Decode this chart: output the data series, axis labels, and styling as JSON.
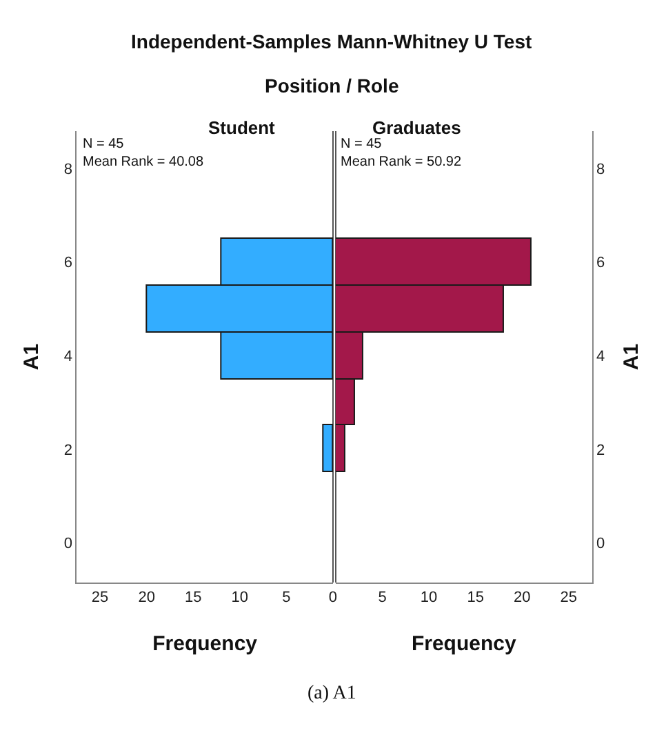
{
  "chart_data": [
    {
      "type": "histogram",
      "orientation": "horizontal",
      "title": "Student",
      "xlabel": "Frequency",
      "ylabel": "A1",
      "bins": [
        1.5,
        2.5,
        3.5,
        4.5,
        5.5,
        6.5
      ],
      "values": [
        1,
        0,
        12,
        20,
        12
      ],
      "color": "#33adff",
      "xlim": [
        27.5,
        0
      ],
      "xticks": [
        25,
        20,
        15,
        10,
        5,
        0
      ],
      "ylim": [
        -0.85,
        8.8
      ],
      "yticks": [
        0,
        2,
        4,
        6,
        8
      ],
      "grid": false,
      "annotations": [
        "Independent-Samples Mann-Whitney U Test",
        "Position / Role",
        "N = 45\nMean Rank = 40.08"
      ]
    },
    {
      "type": "histogram",
      "orientation": "horizontal",
      "title": "Graduates",
      "xlabel": "Frequency",
      "ylabel": "A1",
      "bins": [
        1.5,
        2.5,
        3.5,
        4.5,
        5.5,
        6.5
      ],
      "values": [
        1,
        2,
        3,
        18,
        21
      ],
      "color": "#a3184a",
      "xlim": [
        0,
        27.5
      ],
      "xticks": [
        5,
        10,
        15,
        20,
        25
      ],
      "ylim": [
        -0.85,
        8.8
      ],
      "yticks": [
        0,
        2,
        4,
        6,
        8
      ],
      "grid": false,
      "annotations": [
        "N = 45\nMean Rank = 50.92",
        "(a) A1"
      ]
    }
  ]
}
